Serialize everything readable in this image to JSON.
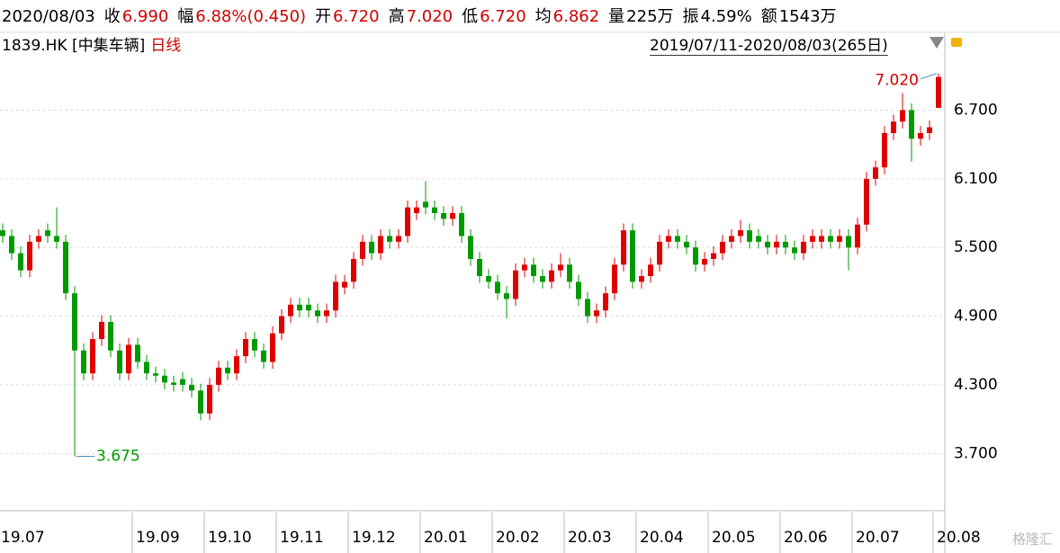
{
  "header": {
    "date": "2020/08/03",
    "items": [
      {
        "label": "收",
        "value": "6.990"
      },
      {
        "label": "幅",
        "value": "6.88%(0.450)"
      },
      {
        "label": "开",
        "value": "6.720"
      },
      {
        "label": "高",
        "value": "7.020"
      },
      {
        "label": "低",
        "value": "6.720"
      },
      {
        "label": "均",
        "value": "6.862"
      },
      {
        "label": "量",
        "value": "225万"
      },
      {
        "label": "振",
        "value": "4.59%"
      },
      {
        "label": "额",
        "value": "1543万"
      }
    ],
    "symbol": "1839.HK [中集车辆]",
    "period": "日线",
    "range": "2019/07/11-2020/08/03(265日)",
    "watermark": "格隆汇"
  },
  "chart_data": {
    "type": "candlestick",
    "categories": [
      "19.07",
      null,
      null,
      null,
      null,
      null,
      null,
      null,
      null,
      null,
      null,
      null,
      null,
      null,
      null,
      "19.09",
      null,
      null,
      null,
      null,
      null,
      null,
      null,
      "19.10",
      null,
      null,
      null,
      null,
      null,
      null,
      null,
      "19.11",
      null,
      null,
      null,
      null,
      null,
      null,
      null,
      "19.12",
      null,
      null,
      null,
      null,
      null,
      null,
      null,
      "20.01",
      null,
      null,
      null,
      null,
      null,
      null,
      null,
      "20.02",
      null,
      null,
      null,
      null,
      null,
      null,
      null,
      "20.03",
      null,
      null,
      null,
      null,
      null,
      null,
      null,
      "20.04",
      null,
      null,
      null,
      null,
      null,
      null,
      null,
      "20.05",
      null,
      null,
      null,
      null,
      null,
      null,
      null,
      "20.06",
      null,
      null,
      null,
      null,
      null,
      null,
      null,
      "20.07",
      null,
      null,
      null,
      null,
      null,
      null,
      null,
      null,
      "20.08"
    ],
    "open": [
      5.65,
      5.6,
      5.45,
      5.3,
      5.55,
      5.65,
      5.6,
      5.55,
      5.1,
      4.6,
      4.4,
      4.7,
      4.85,
      4.6,
      4.4,
      4.65,
      4.5,
      4.4,
      4.38,
      4.32,
      4.35,
      4.3,
      4.25,
      4.05,
      4.3,
      4.45,
      4.4,
      4.55,
      4.7,
      4.6,
      4.5,
      4.75,
      4.9,
      5.0,
      5.0,
      4.95,
      4.9,
      4.95,
      5.15,
      5.2,
      5.4,
      5.55,
      5.45,
      5.6,
      5.55,
      5.6,
      5.8,
      5.9,
      5.85,
      5.8,
      5.75,
      5.8,
      5.6,
      5.4,
      5.25,
      5.2,
      5.1,
      5.05,
      5.3,
      5.35,
      5.25,
      5.2,
      5.3,
      5.35,
      5.2,
      5.05,
      4.9,
      4.95,
      5.1,
      5.35,
      5.65,
      5.2,
      5.25,
      5.35,
      5.55,
      5.6,
      5.55,
      5.5,
      5.35,
      5.4,
      5.45,
      5.55,
      5.6,
      5.65,
      5.6,
      5.55,
      5.5,
      5.55,
      5.5,
      5.45,
      5.55,
      5.55,
      5.6,
      5.55,
      5.6,
      5.5,
      5.7,
      6.1,
      6.2,
      6.5,
      6.6,
      6.7,
      6.45,
      6.5,
      6.72
    ],
    "high": [
      5.71,
      5.66,
      5.51,
      5.61,
      5.66,
      5.71,
      5.85,
      5.61,
      5.16,
      4.66,
      4.76,
      4.91,
      4.91,
      4.66,
      4.71,
      4.71,
      4.56,
      4.46,
      4.44,
      4.38,
      4.41,
      4.36,
      4.31,
      4.36,
      4.51,
      4.51,
      4.61,
      4.76,
      4.76,
      4.66,
      4.81,
      4.96,
      5.06,
      5.06,
      5.06,
      5.01,
      5.01,
      5.26,
      5.26,
      5.46,
      5.61,
      5.61,
      5.66,
      5.66,
      5.66,
      5.91,
      5.91,
      6.08,
      5.91,
      5.86,
      5.86,
      5.86,
      5.66,
      5.46,
      5.31,
      5.26,
      5.16,
      5.36,
      5.41,
      5.41,
      5.31,
      5.36,
      5.45,
      5.41,
      5.26,
      5.11,
      5.01,
      5.16,
      5.41,
      5.71,
      5.71,
      5.31,
      5.41,
      5.61,
      5.66,
      5.66,
      5.61,
      5.56,
      5.46,
      5.51,
      5.61,
      5.66,
      5.74,
      5.71,
      5.66,
      5.61,
      5.61,
      5.61,
      5.56,
      5.61,
      5.66,
      5.66,
      5.66,
      5.66,
      5.66,
      5.76,
      6.16,
      6.26,
      6.56,
      6.66,
      6.85,
      6.76,
      6.56,
      6.61,
      7.02
    ],
    "low": [
      5.54,
      5.39,
      5.24,
      5.24,
      5.49,
      5.54,
      5.49,
      5.04,
      3.675,
      4.34,
      4.34,
      4.64,
      4.54,
      4.34,
      4.34,
      4.44,
      4.34,
      4.32,
      4.26,
      4.24,
      4.24,
      4.19,
      3.99,
      3.99,
      4.24,
      4.34,
      4.34,
      4.49,
      4.54,
      4.44,
      4.44,
      4.69,
      4.84,
      4.89,
      4.89,
      4.84,
      4.84,
      4.89,
      5.09,
      5.14,
      5.34,
      5.39,
      5.39,
      5.49,
      5.49,
      5.54,
      5.74,
      5.79,
      5.74,
      5.69,
      5.69,
      5.54,
      5.34,
      5.19,
      5.14,
      5.04,
      4.88,
      4.99,
      5.24,
      5.19,
      5.14,
      5.14,
      5.24,
      5.14,
      4.99,
      4.84,
      4.84,
      4.89,
      5.04,
      5.29,
      5.14,
      5.14,
      5.19,
      5.29,
      5.49,
      5.49,
      5.44,
      5.29,
      5.29,
      5.34,
      5.39,
      5.49,
      5.54,
      5.49,
      5.49,
      5.44,
      5.44,
      5.44,
      5.39,
      5.39,
      5.49,
      5.49,
      5.49,
      5.49,
      5.3,
      5.44,
      5.64,
      6.04,
      6.14,
      6.44,
      6.54,
      6.25,
      6.39,
      6.44,
      6.72
    ],
    "close": [
      5.6,
      5.45,
      5.3,
      5.55,
      5.6,
      5.6,
      5.55,
      5.1,
      4.6,
      4.4,
      4.7,
      4.85,
      4.6,
      4.4,
      4.65,
      4.5,
      4.4,
      4.38,
      4.32,
      4.3,
      4.3,
      4.25,
      4.05,
      4.3,
      4.45,
      4.4,
      4.55,
      4.7,
      4.6,
      4.5,
      4.75,
      4.9,
      5.0,
      4.95,
      4.95,
      4.9,
      4.95,
      5.2,
      5.2,
      5.4,
      5.55,
      5.45,
      5.6,
      5.55,
      5.6,
      5.85,
      5.85,
      5.85,
      5.8,
      5.75,
      5.8,
      5.6,
      5.4,
      5.25,
      5.2,
      5.1,
      5.05,
      5.3,
      5.35,
      5.25,
      5.2,
      5.3,
      5.35,
      5.2,
      5.05,
      4.9,
      4.95,
      5.1,
      5.35,
      5.65,
      5.2,
      5.25,
      5.35,
      5.55,
      5.6,
      5.55,
      5.5,
      5.35,
      5.4,
      5.45,
      5.55,
      5.6,
      5.65,
      5.55,
      5.55,
      5.5,
      5.55,
      5.5,
      5.45,
      5.55,
      5.6,
      5.6,
      5.55,
      5.6,
      5.5,
      5.7,
      6.1,
      6.2,
      6.5,
      6.6,
      6.7,
      6.45,
      6.5,
      6.55,
      6.99
    ],
    "up_color": "#e00000",
    "down_color": "#009a00",
    "ylim": [
      3.2,
      7.34
    ],
    "yticks": [
      {
        "value": 3.7,
        "label": "3.700"
      },
      {
        "value": 4.3,
        "label": "4.300"
      },
      {
        "value": 4.9,
        "label": "4.900"
      },
      {
        "value": 5.5,
        "label": "5.500"
      },
      {
        "value": 6.1,
        "label": "6.100"
      },
      {
        "value": 6.7,
        "label": "6.700"
      }
    ],
    "grid": true,
    "annotations": [
      {
        "label": "7.020",
        "value": 7.02,
        "color": "#d00000"
      },
      {
        "label": "3.675",
        "value": 3.675,
        "color": "#009a00"
      }
    ]
  }
}
